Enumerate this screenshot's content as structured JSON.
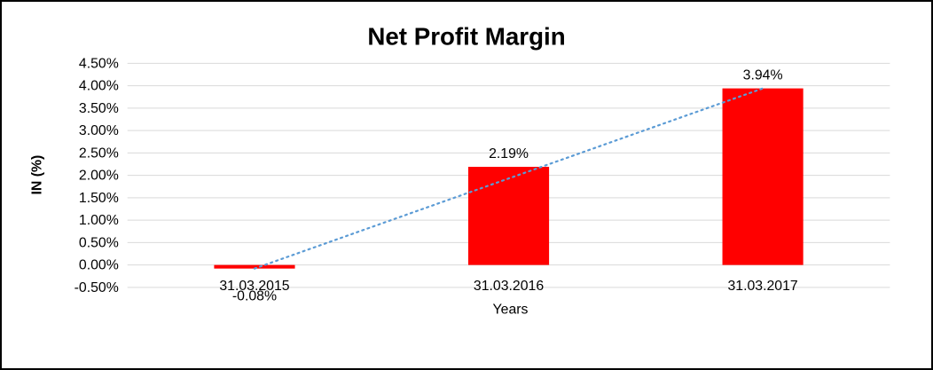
{
  "chart_data": {
    "type": "bar",
    "title": "Net Profit Margin",
    "xlabel": "Years",
    "ylabel": "IN (%)",
    "categories": [
      "31.03.2015",
      "31.03.2016",
      "31.03.2017"
    ],
    "values": [
      -0.08,
      2.19,
      3.94
    ],
    "data_labels": [
      "-0.08%",
      "2.19%",
      "3.94%"
    ],
    "ylim": [
      -0.5,
      4.5
    ],
    "ytick_step": 0.5,
    "ytick_labels": [
      "-0.50%",
      "0.00%",
      "0.50%",
      "1.00%",
      "1.50%",
      "2.00%",
      "2.50%",
      "3.00%",
      "3.50%",
      "4.00%",
      "4.50%"
    ],
    "grid": true,
    "legend": "none",
    "trendline": {
      "type": "linear",
      "style": "dotted"
    },
    "colors": {
      "bar": "#FF0000",
      "trendline": "#5B9BD5",
      "gridline": "#D9D9D9",
      "text": "#000000",
      "background": "#FFFFFF",
      "border": "#000000"
    }
  }
}
